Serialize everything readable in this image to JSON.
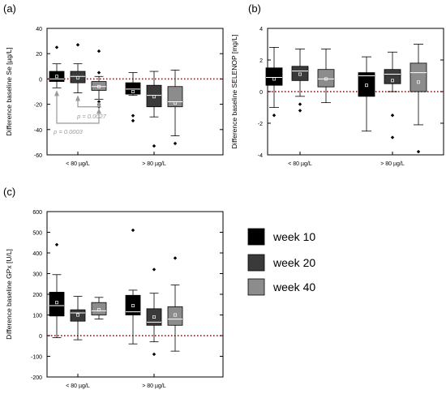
{
  "chart_data": [
    {
      "panel_label": "(a)",
      "type": "box",
      "ylabel": "Difference baseline Se [µg/L]",
      "ylim": [
        -60,
        40
      ],
      "yticks": [
        -60,
        -40,
        -20,
        0,
        20,
        40
      ],
      "group_labels": [
        "< 80 µg/L",
        "> 80 µg/L"
      ],
      "reference_line": 0,
      "boxes": [
        {
          "group": "< 80 µg/L",
          "series": "week 10",
          "whisker_low": -7,
          "q1": -2,
          "median": 0,
          "q3": 6,
          "whisker_high": 12,
          "mean": 2,
          "outliers": [
            25
          ]
        },
        {
          "group": "< 80 µg/L",
          "series": "week 20",
          "whisker_low": -11,
          "q1": -3,
          "median": 2,
          "q3": 6,
          "whisker_high": 12,
          "mean": 1,
          "outliers": [
            27
          ]
        },
        {
          "group": "< 80 µg/L",
          "series": "week 40",
          "whisker_low": -16,
          "q1": -9,
          "median": -6,
          "q3": -2,
          "whisker_high": 2,
          "mean": -6,
          "outliers": [
            22,
            5,
            -18,
            -20,
            -22
          ]
        },
        {
          "group": "> 80 µg/L",
          "series": "week 10",
          "whisker_low": -13,
          "q1": -12,
          "median": -8,
          "q3": -3,
          "whisker_high": 5,
          "mean": -10,
          "outliers": [
            -29,
            -33
          ]
        },
        {
          "group": "> 80 µg/L",
          "series": "week 20",
          "whisker_low": -30,
          "q1": -22,
          "median": -13,
          "q3": -5,
          "whisker_high": 6,
          "mean": -14,
          "outliers": [
            -53
          ]
        },
        {
          "group": "> 80 µg/L",
          "series": "week 40",
          "whisker_low": -45,
          "q1": -22,
          "median": -18,
          "q3": -6,
          "whisker_high": 7,
          "mean": -19,
          "outliers": [
            -51
          ]
        }
      ],
      "annotations": [
        {
          "text": "p = 0.0003",
          "from_box": 0,
          "to_box": 2
        },
        {
          "text": "p = 0.0027",
          "from_box": 1,
          "to_box": 2
        }
      ]
    },
    {
      "panel_label": "(b)",
      "type": "box",
      "ylabel": "Difference baseline SELENOP [mg/L]",
      "ylim": [
        -4,
        4
      ],
      "yticks": [
        -4,
        -2,
        0,
        2,
        4
      ],
      "group_labels": [
        "< 80 µg/L",
        "> 80 µg/L"
      ],
      "reference_line": 0,
      "boxes": [
        {
          "group": "< 80 µg/L",
          "series": "week 10",
          "whisker_low": -1.0,
          "q1": 0.4,
          "median": 0.9,
          "q3": 1.5,
          "whisker_high": 2.8,
          "mean": 0.8,
          "outliers": [
            -1.5
          ]
        },
        {
          "group": "< 80 µg/L",
          "series": "week 20",
          "whisker_low": -0.3,
          "q1": 0.7,
          "median": 1.3,
          "q3": 1.6,
          "whisker_high": 2.7,
          "mean": 1.1,
          "outliers": [
            -0.8,
            -1.2
          ]
        },
        {
          "group": "< 80 µg/L",
          "series": "week 40",
          "whisker_low": -0.7,
          "q1": 0.3,
          "median": 0.8,
          "q3": 1.4,
          "whisker_high": 2.7,
          "mean": 0.8,
          "outliers": []
        },
        {
          "group": "> 80 µg/L",
          "series": "week 10",
          "whisker_low": -2.5,
          "q1": -0.3,
          "median": 1.0,
          "q3": 1.2,
          "whisker_high": 2.2,
          "mean": 0.4,
          "outliers": []
        },
        {
          "group": "> 80 µg/L",
          "series": "week 20",
          "whisker_low": 0.0,
          "q1": 0.5,
          "median": 1.1,
          "q3": 1.4,
          "whisker_high": 2.5,
          "mean": 0.7,
          "outliers": [
            -1.5,
            -2.9
          ]
        },
        {
          "group": "> 80 µg/L",
          "series": "week 40",
          "whisker_low": -2.1,
          "q1": 0.0,
          "median": 1.2,
          "q3": 1.8,
          "whisker_high": 3.0,
          "mean": 0.6,
          "outliers": [
            -3.8
          ]
        }
      ]
    },
    {
      "panel_label": "(c)",
      "type": "box",
      "ylabel": "Difference baseline GPx [U/L]",
      "ylim": [
        -200,
        600
      ],
      "yticks": [
        -200,
        -100,
        0,
        100,
        200,
        300,
        400,
        500,
        600
      ],
      "group_labels": [
        "< 80 µg/L",
        "> 80 µg/L"
      ],
      "reference_line": 0,
      "boxes": [
        {
          "group": "< 80 µg/L",
          "series": "week 10",
          "whisker_low": -10,
          "q1": 95,
          "median": 145,
          "q3": 210,
          "whisker_high": 295,
          "mean": 160,
          "outliers": [
            440
          ]
        },
        {
          "group": "< 80 µg/L",
          "series": "week 20",
          "whisker_low": -20,
          "q1": 70,
          "median": 110,
          "q3": 125,
          "whisker_high": 190,
          "mean": 100,
          "outliers": []
        },
        {
          "group": "< 80 µg/L",
          "series": "week 40",
          "whisker_low": 80,
          "q1": 100,
          "median": 120,
          "q3": 160,
          "whisker_high": 185,
          "mean": 125,
          "outliers": []
        },
        {
          "group": "> 80 µg/L",
          "series": "week 10",
          "whisker_low": -40,
          "q1": 100,
          "median": 115,
          "q3": 195,
          "whisker_high": 220,
          "mean": 145,
          "outliers": [
            510
          ]
        },
        {
          "group": "> 80 µg/L",
          "series": "week 20",
          "whisker_low": -30,
          "q1": 50,
          "median": 65,
          "q3": 130,
          "whisker_high": 205,
          "mean": 90,
          "outliers": [
            320,
            -90
          ]
        },
        {
          "group": "> 80 µg/L",
          "series": "week 40",
          "whisker_low": -75,
          "q1": 50,
          "median": 80,
          "q3": 140,
          "whisker_high": 245,
          "mean": 100,
          "outliers": [
            375
          ]
        }
      ]
    }
  ],
  "legend": {
    "items": [
      {
        "label": "week 10",
        "color": "#000000"
      },
      {
        "label": "week 20",
        "color": "#3a3a3a"
      },
      {
        "label": "week 40",
        "color": "#8c8c8c"
      }
    ]
  },
  "colors": {
    "reference_line": "#e00000",
    "annotation": "#9a9a9a",
    "axis": "#000000"
  }
}
